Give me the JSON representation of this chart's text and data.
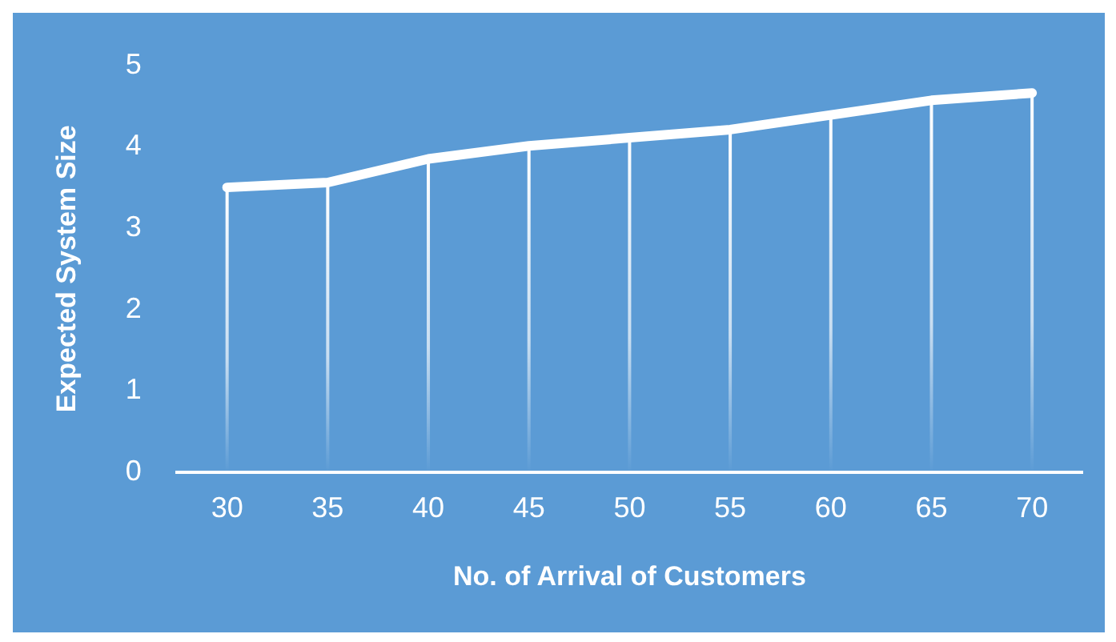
{
  "chart_data": {
    "type": "line",
    "xlabel": "No. of Arrival of Customers",
    "ylabel": "Expected System Size",
    "categories": [
      "30",
      "35",
      "40",
      "45",
      "50",
      "55",
      "60",
      "65",
      "70"
    ],
    "series": [
      {
        "color": "#ffffff",
        "values": [
          3.5,
          3.56,
          3.85,
          4.01,
          4.11,
          4.21,
          4.39,
          4.57,
          4.66
        ]
      }
    ],
    "ylim": [
      0,
      5
    ],
    "yticks": [
      0,
      1,
      2,
      3,
      4,
      5
    ],
    "grid": "x",
    "legend": false,
    "marker": "none",
    "line_style": "solid"
  }
}
